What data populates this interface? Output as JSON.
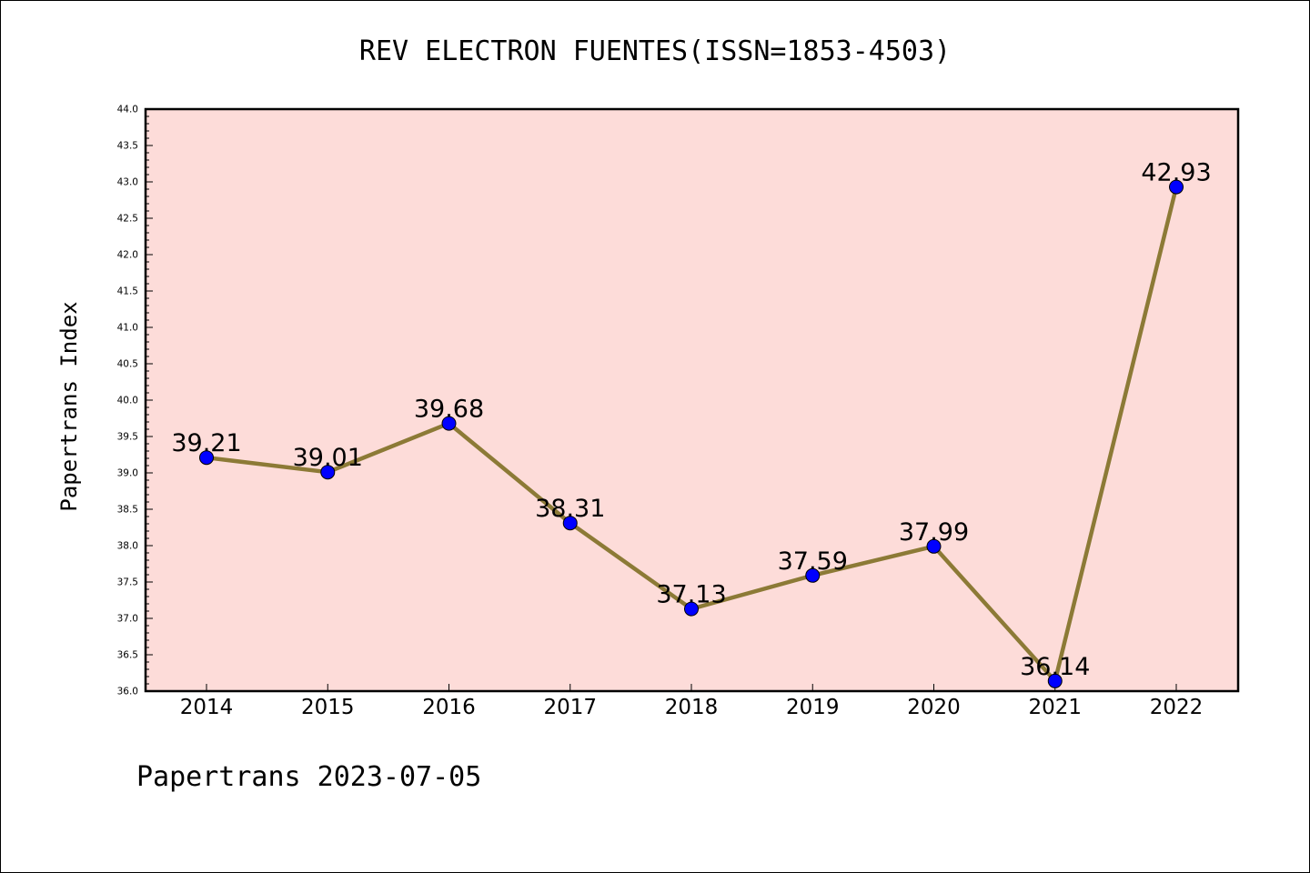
{
  "chart_data": {
    "type": "line",
    "title": "REV ELECTRON FUENTES(ISSN=1853-4503)",
    "xlabel": "",
    "ylabel": "Papertrans Index",
    "categories": [
      "2014",
      "2015",
      "2016",
      "2017",
      "2018",
      "2019",
      "2020",
      "2021",
      "2022"
    ],
    "series": [
      {
        "values": [
          39.21,
          39.01,
          39.68,
          38.31,
          37.13,
          37.59,
          37.99,
          36.14,
          42.93
        ]
      }
    ],
    "data_labels": [
      "39.21",
      "39.01",
      "39.68",
      "38.31",
      "37.13",
      "37.59",
      "37.99",
      "36.14",
      "42.93"
    ],
    "ylim": [
      36.0,
      44.0
    ],
    "yticks": [
      "36.0",
      "36.5",
      "37.0",
      "37.5",
      "38.0",
      "38.5",
      "39.0",
      "39.5",
      "40.0",
      "40.5",
      "41.0",
      "41.5",
      "42.0",
      "42.5",
      "43.0",
      "43.5",
      "44.0"
    ],
    "grid": false,
    "legend": "none",
    "colors": {
      "plot_background": "#fddcd9",
      "line": "#8c7a36",
      "marker": "#0000ff"
    }
  },
  "footer": {
    "credit": "Papertrans 2023-07-05"
  }
}
